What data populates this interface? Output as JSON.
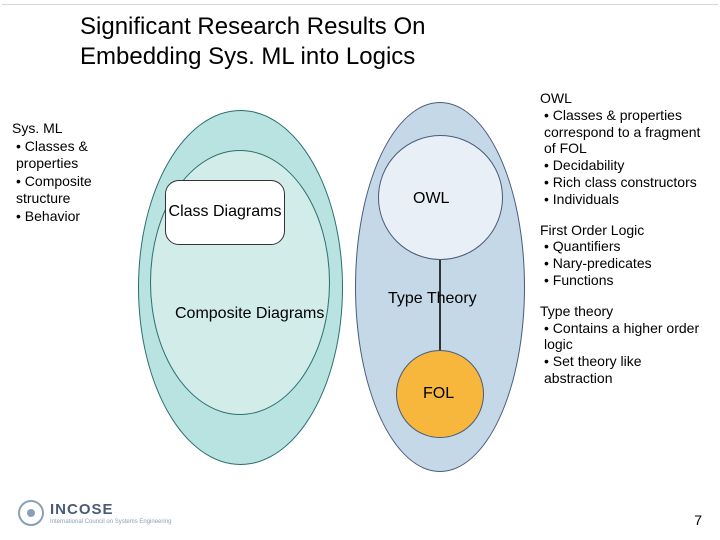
{
  "title_line1": "Significant Research Results On",
  "title_line2": "Embedding Sys. ML into Logics",
  "left": {
    "heading": "Sys. ML",
    "items": [
      "Classes & properties",
      "Composite structure",
      "Behavior"
    ]
  },
  "diagram": {
    "class_diagrams": "Class Diagrams",
    "composite_diagrams": "Composite Diagrams",
    "owl": "OWL",
    "type_theory": "Type Theory",
    "fol": "FOL"
  },
  "right": {
    "owl": {
      "heading": "OWL",
      "items": [
        "Classes & properties correspond to a fragment of FOL",
        "Decidability",
        "Rich class constructors",
        "Individuals"
      ]
    },
    "fol": {
      "heading": "First Order Logic",
      "items": [
        "Quantifiers",
        "Nary-predicates",
        "Functions"
      ]
    },
    "tt": {
      "heading": "Type theory",
      "items": [
        "Contains a higher order logic",
        "Set theory like abstraction"
      ]
    }
  },
  "colors": {
    "sysml_outer": "#b9e3e0",
    "sysml_mid": "#d2ecea",
    "logic_outer": "#c5d8e8",
    "owl_fill": "#e9eff6",
    "fol_fill": "#f6b73c",
    "border_teal": "#2a6f6f",
    "border_blue": "#4a5a78"
  },
  "logo": {
    "name": "INCOSE",
    "sub": "International Council on Systems Engineering"
  },
  "page_number": "7"
}
